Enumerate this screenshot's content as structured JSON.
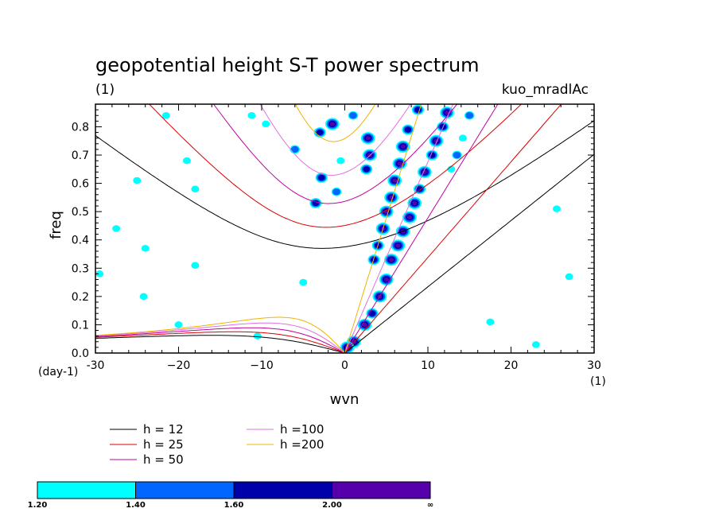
{
  "chart_data": {
    "type": "contour",
    "title": "geopotential height S-T power spectrum",
    "subtitle_left": "(1)",
    "subtitle_right": "kuo_mradlAc",
    "xlabel": "wvn",
    "ylabel": "freq",
    "x_unit": "(1)",
    "y_unit": "(day-1)",
    "xlim": [
      -30,
      30
    ],
    "ylim": [
      0,
      0.88
    ],
    "xticks": [
      -30,
      -20,
      -10,
      0,
      10,
      20,
      30
    ],
    "xtick_labels": [
      "-30",
      "−20",
      "−10",
      "0",
      "10",
      "20",
      "30"
    ],
    "yticks": [
      0,
      0.1,
      0.2,
      0.3,
      0.4,
      0.5,
      0.6,
      0.7,
      0.8
    ],
    "ytick_labels": [
      "0.0",
      "0.1",
      "0.2",
      "0.3",
      "0.4",
      "0.5",
      "0.6",
      "0.7",
      "0.8"
    ],
    "dispersion_curves": [
      {
        "label": "h = 12",
        "h": 12,
        "color": "#000000"
      },
      {
        "label": "h = 25",
        "h": 25,
        "color": "#dd0000"
      },
      {
        "label": "h = 50",
        "h": 50,
        "color": "#c000a0"
      },
      {
        "label": "h =100",
        "h": 100,
        "color": "#e070e0"
      },
      {
        "label": "h =200",
        "h": 200,
        "color": "#f0b400"
      }
    ],
    "shading_levels": [
      {
        "from": 1.2,
        "to": 1.4,
        "color": "#00ffff"
      },
      {
        "from": 1.4,
        "to": 1.6,
        "color": "#0066ff"
      },
      {
        "from": 1.6,
        "to": 2.0,
        "color": "#0000aa"
      },
      {
        "from": 2.0,
        "to": null,
        "color": "#5500aa"
      }
    ],
    "colorbar_labels": [
      "1.20",
      "1.40",
      "1.60",
      "2.00",
      "∞"
    ],
    "shaded_blobs": [
      {
        "x": 12.3,
        "y": 0.85,
        "level": 3
      },
      {
        "x": 11.8,
        "y": 0.8,
        "level": 2
      },
      {
        "x": 11.0,
        "y": 0.75,
        "level": 3
      },
      {
        "x": 10.5,
        "y": 0.7,
        "level": 2
      },
      {
        "x": 9.6,
        "y": 0.64,
        "level": 3
      },
      {
        "x": 9.0,
        "y": 0.58,
        "level": 2
      },
      {
        "x": 8.4,
        "y": 0.53,
        "level": 3
      },
      {
        "x": 7.8,
        "y": 0.48,
        "level": 3
      },
      {
        "x": 7.0,
        "y": 0.43,
        "level": 3
      },
      {
        "x": 6.4,
        "y": 0.38,
        "level": 3
      },
      {
        "x": 5.6,
        "y": 0.33,
        "level": 3
      },
      {
        "x": 5.0,
        "y": 0.26,
        "level": 3
      },
      {
        "x": 4.2,
        "y": 0.2,
        "level": 3
      },
      {
        "x": 3.3,
        "y": 0.14,
        "level": 2
      },
      {
        "x": 2.4,
        "y": 0.1,
        "level": 3
      },
      {
        "x": 1.1,
        "y": 0.04,
        "level": 3
      },
      {
        "x": 0.3,
        "y": 0.02,
        "level": 3
      },
      {
        "x": 8.8,
        "y": 0.86,
        "level": 2
      },
      {
        "x": 7.6,
        "y": 0.79,
        "level": 2
      },
      {
        "x": 7.0,
        "y": 0.73,
        "level": 3
      },
      {
        "x": 6.6,
        "y": 0.67,
        "level": 3
      },
      {
        "x": 6.0,
        "y": 0.61,
        "level": 3
      },
      {
        "x": 5.6,
        "y": 0.55,
        "level": 3
      },
      {
        "x": 5.0,
        "y": 0.5,
        "level": 3
      },
      {
        "x": 4.6,
        "y": 0.44,
        "level": 3
      },
      {
        "x": 4.0,
        "y": 0.38,
        "level": 2
      },
      {
        "x": 3.5,
        "y": 0.33,
        "level": 2
      },
      {
        "x": 2.8,
        "y": 0.76,
        "level": 3
      },
      {
        "x": 3.0,
        "y": 0.7,
        "level": 3
      },
      {
        "x": 2.6,
        "y": 0.65,
        "level": 2
      },
      {
        "x": -1.5,
        "y": 0.81,
        "level": 3
      },
      {
        "x": -3.0,
        "y": 0.78,
        "level": 2
      },
      {
        "x": -2.8,
        "y": 0.62,
        "level": 2
      },
      {
        "x": -3.5,
        "y": 0.53,
        "level": 2
      },
      {
        "x": -1.0,
        "y": 0.57,
        "level": 1
      },
      {
        "x": -6.0,
        "y": 0.72,
        "level": 1
      },
      {
        "x": -9.5,
        "y": 0.81,
        "level": 0
      },
      {
        "x": -11.2,
        "y": 0.84,
        "level": 0
      },
      {
        "x": 1.0,
        "y": 0.84,
        "level": 1
      },
      {
        "x": -0.5,
        "y": 0.68,
        "level": 0
      },
      {
        "x": 15.0,
        "y": 0.84,
        "level": 1
      },
      {
        "x": 14.2,
        "y": 0.76,
        "level": 0
      },
      {
        "x": 13.5,
        "y": 0.7,
        "level": 1
      },
      {
        "x": 12.8,
        "y": 0.65,
        "level": 0
      },
      {
        "x": -27.5,
        "y": 0.44,
        "level": 0
      },
      {
        "x": -19.0,
        "y": 0.68,
        "level": 0
      },
      {
        "x": -18.0,
        "y": 0.58,
        "level": 0
      },
      {
        "x": -25.0,
        "y": 0.61,
        "level": 0
      },
      {
        "x": -21.5,
        "y": 0.84,
        "level": 0
      },
      {
        "x": -18.0,
        "y": 0.31,
        "level": 0
      },
      {
        "x": -24.2,
        "y": 0.2,
        "level": 0
      },
      {
        "x": -29.5,
        "y": 0.28,
        "level": 0
      },
      {
        "x": -24.0,
        "y": 0.37,
        "level": 0
      },
      {
        "x": -5.0,
        "y": 0.25,
        "level": 0
      },
      {
        "x": -10.5,
        "y": 0.06,
        "level": 0
      },
      {
        "x": 17.5,
        "y": 0.11,
        "level": 0
      },
      {
        "x": 23.0,
        "y": 0.03,
        "level": 0
      },
      {
        "x": 27.0,
        "y": 0.27,
        "level": 0
      },
      {
        "x": 25.5,
        "y": 0.51,
        "level": 0
      },
      {
        "x": -20.0,
        "y": 0.1,
        "level": 0
      }
    ]
  }
}
